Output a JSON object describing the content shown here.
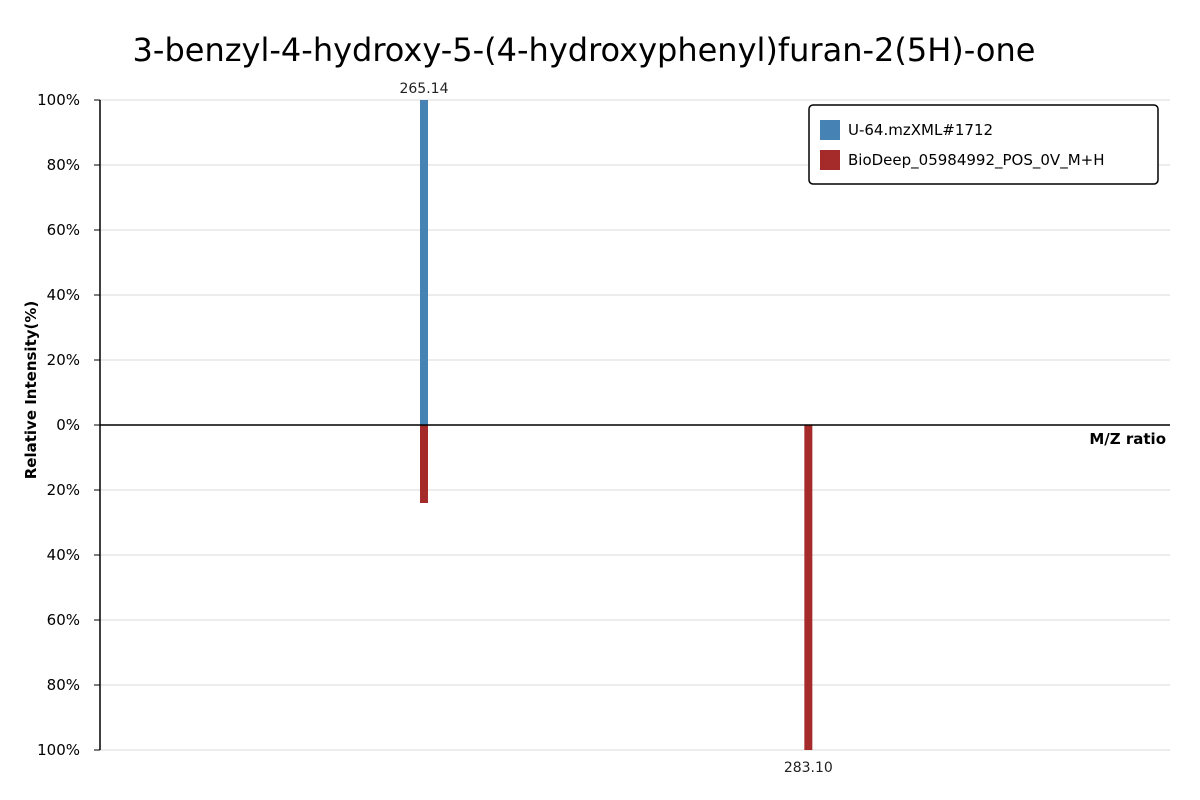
{
  "chart_data": {
    "type": "bar",
    "title": "3-benzyl-4-hydroxy-5-(4-hydroxyphenyl)furan-2(5H)-one",
    "xlabel": "M/Z ratio",
    "ylabel": "Relative Intensity(%)",
    "y_ticks_upper": [
      "0%",
      "20%",
      "40%",
      "60%",
      "80%",
      "100%"
    ],
    "y_ticks_lower": [
      "20%",
      "40%",
      "60%",
      "80%",
      "100%"
    ],
    "ylim": [
      -100,
      100
    ],
    "xlim": [
      250,
      300
    ],
    "grid": true,
    "legend_position": "top-right",
    "series": [
      {
        "name": "U-64.mzXML#1712",
        "color": "#4682b4",
        "direction": "up",
        "peaks": [
          {
            "mz": 265.14,
            "intensity": 100,
            "label": "265.14"
          }
        ]
      },
      {
        "name": "BioDeep_05984992_POS_0V_M+H",
        "color": "#a52a2a",
        "direction": "down",
        "peaks": [
          {
            "mz": 265.14,
            "intensity": 24,
            "label": ""
          },
          {
            "mz": 283.1,
            "intensity": 100,
            "label": "283.10"
          }
        ]
      }
    ]
  }
}
